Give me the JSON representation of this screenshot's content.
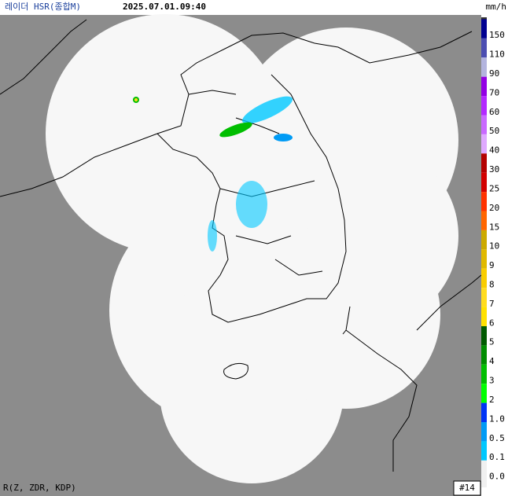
{
  "header": {
    "title": "레이더 HSR(종합M)",
    "time": "2025.07.01.09:40",
    "unit": "mm/h"
  },
  "legend": {
    "top_color": "#333333",
    "base_color": "#f0f0f0",
    "scale": [
      {
        "label": "150",
        "color": "#000090"
      },
      {
        "label": "110",
        "color": "#4c4eb1"
      },
      {
        "label": "90",
        "color": "#b3b4de"
      },
      {
        "label": "70",
        "color": "#9300e4"
      },
      {
        "label": "60",
        "color": "#b329ff"
      },
      {
        "label": "50",
        "color": "#c969ff"
      },
      {
        "label": "40",
        "color": "#dfa9ff"
      },
      {
        "label": "30",
        "color": "#b40000"
      },
      {
        "label": "25",
        "color": "#d20000"
      },
      {
        "label": "20",
        "color": "#ff3200"
      },
      {
        "label": "15",
        "color": "#ff6600"
      },
      {
        "label": "10",
        "color": "#ccaa00"
      },
      {
        "label": "9",
        "color": "#e0b900"
      },
      {
        "label": "8",
        "color": "#f9cd00"
      },
      {
        "label": "7",
        "color": "#ffdc1f"
      },
      {
        "label": "6",
        "color": "#ffe100"
      },
      {
        "label": "5",
        "color": "#005a00"
      },
      {
        "label": "4",
        "color": "#008c00"
      },
      {
        "label": "3",
        "color": "#00be00"
      },
      {
        "label": "2",
        "color": "#00ff00"
      },
      {
        "label": "1.0",
        "color": "#0033f5"
      },
      {
        "label": "0.5",
        "color": "#009bf5"
      },
      {
        "label": "0.1",
        "color": "#00c8ff"
      },
      {
        "label": "0.0",
        "color": "#f0f0f0"
      }
    ]
  },
  "footer": {
    "method": "R(Z, ZDR, KDP)",
    "frame": "#14"
  }
}
